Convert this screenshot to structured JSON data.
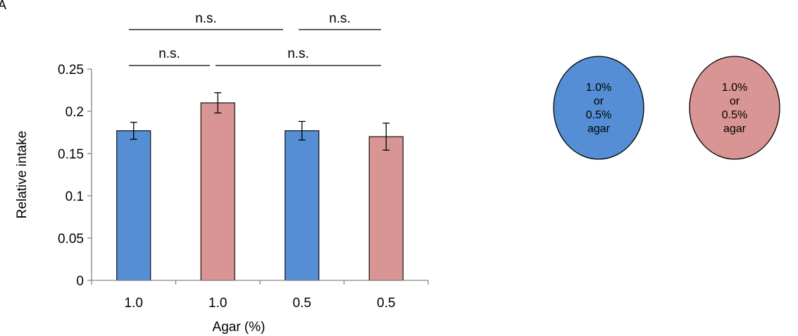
{
  "panel_label": "A",
  "chart_data": {
    "type": "bar",
    "xlabel": "Agar (%)",
    "ylabel": "Relative intake",
    "categories": [
      "1.0",
      "1.0",
      "0.5",
      "0.5"
    ],
    "values": [
      0.177,
      0.21,
      0.177,
      0.17
    ],
    "errors": [
      0.01,
      0.012,
      0.011,
      0.016
    ],
    "bar_colors": [
      "#558ed5",
      "#d99594",
      "#558ed5",
      "#d99594"
    ],
    "ylim": [
      0,
      0.25
    ],
    "yticks": [
      0,
      0.05,
      0.1,
      0.15,
      0.2,
      0.25
    ],
    "ytick_labels": [
      "0",
      "0.05",
      "0.1",
      "0.15",
      "0.2",
      "0.25"
    ],
    "grid": false,
    "significance": [
      {
        "label": "n.s.",
        "from": 0,
        "to": 1
      },
      {
        "label": "n.s.",
        "from": 1,
        "to": 3
      },
      {
        "label": "n.s.",
        "from": 0,
        "to": 2
      },
      {
        "label": "n.s.",
        "from": 2,
        "to": 3
      }
    ]
  },
  "circles": [
    {
      "lines": [
        "1.0%",
        "or",
        "0.5%",
        "agar"
      ],
      "color": "#558ed5"
    },
    {
      "lines": [
        "1.0%",
        "or",
        "0.5%",
        "agar"
      ],
      "color": "#d99594"
    }
  ]
}
